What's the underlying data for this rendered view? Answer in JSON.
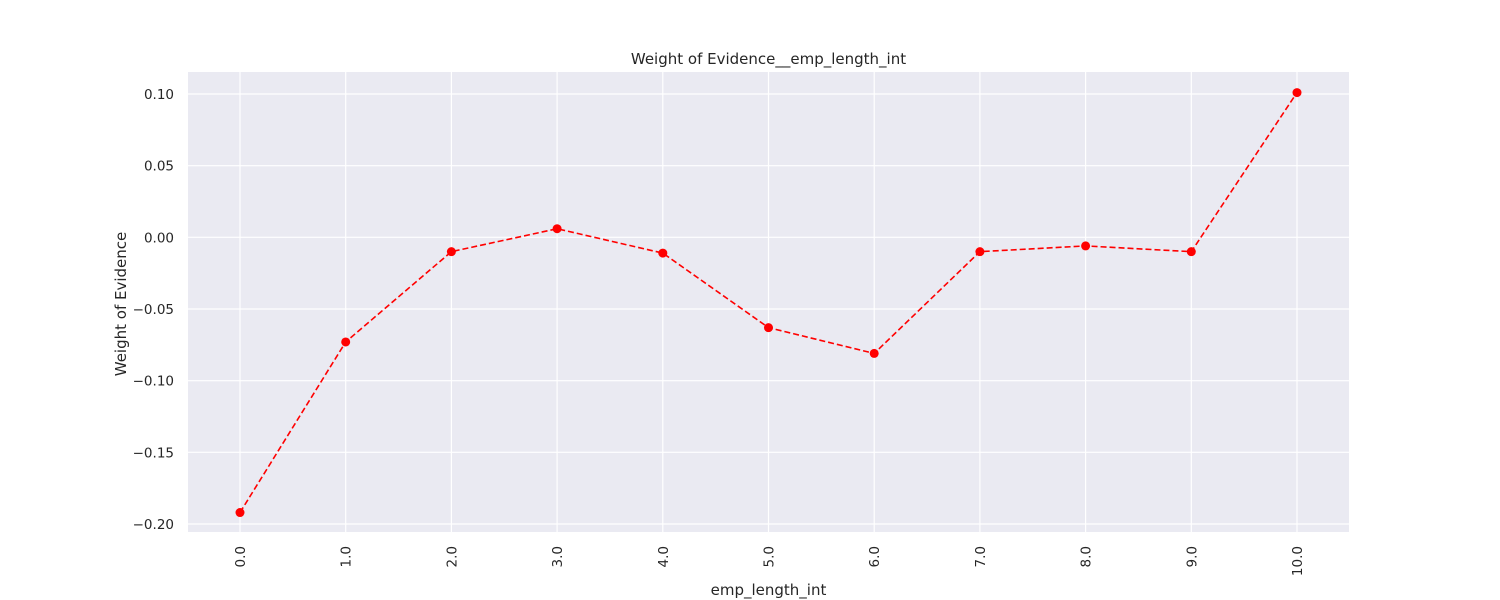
{
  "chart_data": {
    "type": "line",
    "title": "Weight of Evidence__emp_length_int",
    "xlabel": "emp_length_int",
    "ylabel": "Weight of Evidence",
    "categories": [
      "0.0",
      "1.0",
      "2.0",
      "3.0",
      "4.0",
      "5.0",
      "6.0",
      "7.0",
      "8.0",
      "9.0",
      "10.0"
    ],
    "series": [
      {
        "values": [
          -0.192,
          -0.073,
          -0.01,
          0.006,
          -0.011,
          -0.063,
          -0.081,
          -0.01,
          -0.006,
          -0.01,
          0.101
        ]
      }
    ],
    "yticks": [
      "0.10",
      "0.05",
      "0.00",
      "−0.05",
      "−0.10",
      "−0.15",
      "−0.20"
    ],
    "ytick_values": [
      0.1,
      0.05,
      0.0,
      -0.05,
      -0.1,
      -0.15,
      -0.2
    ],
    "ylim": [
      -0.205,
      0.115
    ],
    "grid": true,
    "colors": {
      "line": "#ff0000",
      "marker": "#ff0000",
      "background": "#eaeaf2",
      "grid": "#ffffff",
      "text": "#262626"
    },
    "line_style": "dashed",
    "marker": "circle"
  }
}
